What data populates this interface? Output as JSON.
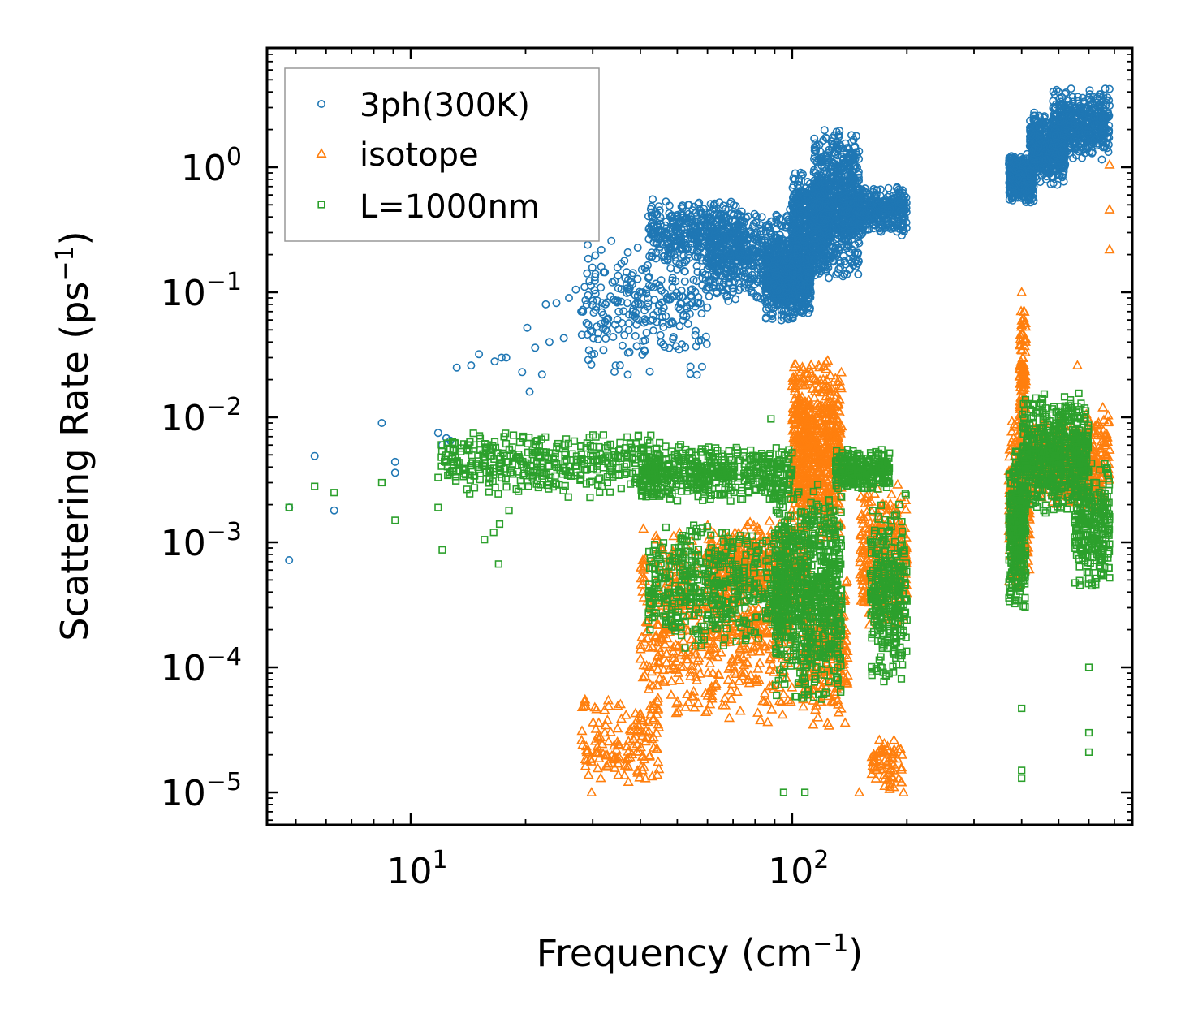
{
  "chart_data": {
    "type": "scatter",
    "title": "",
    "xlabel": {
      "text": "Frequency (cm",
      "sup": "−1",
      "close": ")"
    },
    "ylabel": {
      "text": "Scattering Rate (ps",
      "sup": "−1",
      "close": ")"
    },
    "xscale": "log",
    "yscale": "log",
    "xlim": [
      4.2,
      780
    ],
    "ylim": [
      5.5e-06,
      9.0
    ],
    "x_ticks": [
      {
        "value": 10,
        "base": "10",
        "exp": "1"
      },
      {
        "value": 100,
        "base": "10",
        "exp": "2"
      }
    ],
    "y_ticks": [
      {
        "value": 1,
        "base": "10",
        "exp": "0"
      },
      {
        "value": 0.1,
        "base": "10",
        "exp": "−1"
      },
      {
        "value": 0.01,
        "base": "10",
        "exp": "−2"
      },
      {
        "value": 0.001,
        "base": "10",
        "exp": "−3"
      },
      {
        "value": 0.0001,
        "base": "10",
        "exp": "−4"
      },
      {
        "value": 1e-05,
        "base": "10",
        "exp": "−5"
      }
    ],
    "legend_position": "top-left",
    "series": [
      {
        "name": "3ph(300K)",
        "marker": "circle",
        "color": "#1f77b4",
        "points": [
          [
            4.8,
            0.0019
          ],
          [
            4.8,
            0.00072
          ],
          [
            5.6,
            0.0049
          ],
          [
            6.3,
            0.0018
          ],
          [
            8.4,
            0.009
          ],
          [
            9.1,
            0.0044
          ],
          [
            9.1,
            0.0036
          ],
          [
            11.8,
            0.0075
          ],
          [
            12.1,
            0.006
          ],
          [
            12.4,
            0.0068
          ],
          [
            12.7,
            0.0065
          ],
          [
            13.2,
            0.025
          ],
          [
            14.4,
            0.026
          ],
          [
            15.1,
            0.032
          ],
          [
            16.6,
            0.028
          ],
          [
            17.3,
            0.03
          ],
          [
            17.8,
            0.03
          ],
          [
            19.6,
            0.023
          ],
          [
            20.2,
            0.052
          ],
          [
            20.5,
            0.016
          ],
          [
            21.2,
            0.036
          ],
          [
            22.1,
            0.022
          ],
          [
            22.6,
            0.08
          ],
          [
            23.1,
            0.04
          ],
          [
            24.1,
            0.082
          ],
          [
            25.2,
            0.043
          ],
          [
            26.0,
            0.09
          ],
          [
            27.1,
            0.105
          ],
          [
            28.0,
            0.07
          ],
          [
            29.2,
            0.055
          ],
          [
            30.5,
            0.14
          ],
          [
            31.6,
            0.16
          ],
          [
            32.4,
            0.08
          ],
          [
            33.8,
            0.12
          ],
          [
            35.1,
            0.07
          ],
          [
            36.5,
            0.13
          ],
          [
            37.8,
            0.12
          ],
          [
            39.1,
            0.062
          ],
          [
            40.6,
            0.1
          ],
          [
            42.0,
            0.13
          ]
        ],
        "clusters": [
          {
            "x": [
              28,
              60
            ],
            "ylog": [
              -1.7,
              -0.55
            ],
            "n": 260
          },
          {
            "x": [
              42,
              75
            ],
            "ylog": [
              -0.8,
              -0.25
            ],
            "n": 420
          },
          {
            "x": [
              60,
              100
            ],
            "ylog": [
              -1.1,
              -0.3
            ],
            "n": 480
          },
          {
            "x": [
              85,
              112
            ],
            "ylog": [
              -1.25,
              -0.55
            ],
            "n": 650
          },
          {
            "x": [
              100,
              125
            ],
            "ylog": [
              -0.9,
              0.0
            ],
            "n": 520
          },
          {
            "x": [
              114,
              150
            ],
            "ylog": [
              -0.9,
              0.34
            ],
            "n": 820
          },
          {
            "x": [
              150,
              200
            ],
            "ylog": [
              -0.55,
              -0.15
            ],
            "n": 330
          },
          {
            "x": [
              370,
              430
            ],
            "ylog": [
              -0.3,
              0.12
            ],
            "n": 380
          },
          {
            "x": [
              420,
              520
            ],
            "ylog": [
              -0.15,
              0.45
            ],
            "n": 520
          },
          {
            "x": [
              480,
              680
            ],
            "ylog": [
              0.05,
              0.65
            ],
            "n": 460
          }
        ]
      },
      {
        "name": "isotope",
        "marker": "triangle",
        "color": "#ff7f0e",
        "points": [
          [
            29.8,
            1e-05
          ],
          [
            31.5,
            1.3e-05
          ],
          [
            33.0,
            1.7e-05
          ],
          [
            35.2,
            2.4e-05
          ],
          [
            37.8,
            3.1e-05
          ],
          [
            40.0,
            4.2e-05
          ],
          [
            44.0,
            0.00018
          ],
          [
            47.2,
            0.00052
          ],
          [
            51.0,
            0.00032
          ],
          [
            55.0,
            0.00015
          ],
          [
            62.0,
            9e-05
          ],
          [
            68.0,
            0.00025
          ],
          [
            76.0,
            0.00011
          ],
          [
            88.0,
            0.0006
          ],
          [
            196.0,
            1e-05
          ],
          [
            150.0,
            1e-05
          ],
          [
            165.0,
            1.8e-05
          ],
          [
            680.0,
            1.05
          ],
          [
            680.0,
            0.46
          ],
          [
            680.0,
            0.22
          ],
          [
            680.0,
            0.0055
          ],
          [
            400.0,
            0.1
          ],
          [
            560.0,
            0.026
          ]
        ],
        "clusters": [
          {
            "x": [
              28,
              45
            ],
            "ylog": [
              -5.0,
              -4.2
            ],
            "n": 140
          },
          {
            "x": [
              40,
              100
            ],
            "ylog": [
              -4.5,
              -2.8
            ],
            "n": 620
          },
          {
            "x": [
              60,
              110
            ],
            "ylog": [
              -3.5,
              -2.8
            ],
            "n": 350
          },
          {
            "x": [
              100,
              135
            ],
            "ylog": [
              -3.0,
              -1.5
            ],
            "n": 650
          },
          {
            "x": [
              105,
              140
            ],
            "ylog": [
              -4.5,
              -3.2
            ],
            "n": 260
          },
          {
            "x": [
              150,
              200
            ],
            "ylog": [
              -3.7,
              -2.5
            ],
            "n": 280
          },
          {
            "x": [
              160,
              195
            ],
            "ylog": [
              -5.0,
              -4.5
            ],
            "n": 70
          },
          {
            "x": [
              370,
              420
            ],
            "ylog": [
              -3.4,
              -2.0
            ],
            "n": 280
          },
          {
            "x": [
              395,
              410
            ],
            "ylog": [
              -2.4,
              -1.0
            ],
            "n": 120
          },
          {
            "x": [
              420,
              560
            ],
            "ylog": [
              -2.7,
              -2.0
            ],
            "n": 320
          },
          {
            "x": [
              550,
              680
            ],
            "ylog": [
              -2.8,
              -1.9
            ],
            "n": 200
          }
        ]
      },
      {
        "name": "L=1000nm",
        "marker": "square",
        "color": "#2ca02c",
        "points": [
          [
            4.8,
            0.0019
          ],
          [
            5.6,
            0.0028
          ],
          [
            6.3,
            0.0025
          ],
          [
            8.4,
            0.003
          ],
          [
            9.1,
            0.0015
          ],
          [
            11.8,
            0.0033
          ],
          [
            11.8,
            0.0019
          ],
          [
            12.1,
            0.00087
          ],
          [
            15.6,
            0.00105
          ],
          [
            16.5,
            0.0012
          ],
          [
            17.1,
            0.0014
          ],
          [
            17.0,
            0.00067
          ],
          [
            18.1,
            0.0018
          ],
          [
            88.0,
            0.0097
          ],
          [
            95.0,
            1e-05
          ],
          [
            108.0,
            1e-05
          ],
          [
            400.0,
            1.5e-05
          ],
          [
            400.0,
            1.3e-05
          ],
          [
            400.0,
            4.7e-05
          ],
          [
            600.0,
            3e-05
          ],
          [
            600.0,
            2.1e-05
          ],
          [
            600.0,
            0.0001
          ],
          [
            680.0,
            0.00052
          ],
          [
            680.0,
            0.0016
          ]
        ],
        "clusters": [
          {
            "x": [
              12,
              45
            ],
            "ylog": [
              -2.65,
              -2.1
            ],
            "n": 420
          },
          {
            "x": [
              40,
              100
            ],
            "ylog": [
              -2.7,
              -2.2
            ],
            "n": 500
          },
          {
            "x": [
              42,
              100
            ],
            "ylog": [
              -3.9,
              -2.8
            ],
            "n": 520
          },
          {
            "x": [
              90,
              135
            ],
            "ylog": [
              -4.3,
              -2.5
            ],
            "n": 800
          },
          {
            "x": [
              130,
              180
            ],
            "ylog": [
              -2.6,
              -2.25
            ],
            "n": 260
          },
          {
            "x": [
              160,
              200
            ],
            "ylog": [
              -4.2,
              -2.6
            ],
            "n": 330
          },
          {
            "x": [
              370,
              410
            ],
            "ylog": [
              -3.6,
              -2.2
            ],
            "n": 300
          },
          {
            "x": [
              400,
              600
            ],
            "ylog": [
              -2.8,
              -1.8
            ],
            "n": 650
          },
          {
            "x": [
              550,
              680
            ],
            "ylog": [
              -3.4,
              -2.3
            ],
            "n": 260
          }
        ]
      }
    ]
  }
}
